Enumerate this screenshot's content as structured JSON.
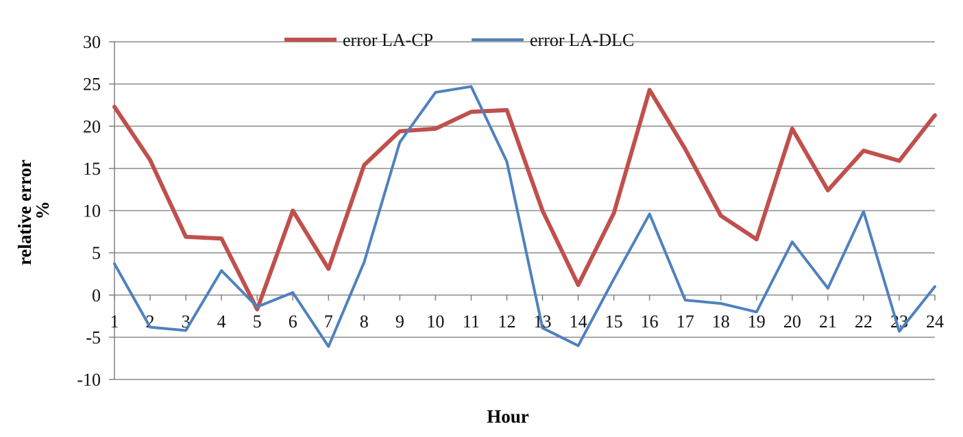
{
  "chart_data": {
    "type": "line",
    "xlabel": "Hour",
    "ylabel_lines": [
      "relative error",
      "%"
    ],
    "ylim": [
      -10,
      30
    ],
    "yticks": [
      -10,
      -5,
      0,
      5,
      10,
      15,
      20,
      25,
      30
    ],
    "grid": "horizontal",
    "legend_position": "top-center",
    "categories": [
      "1",
      "2",
      "3",
      "4",
      "5",
      "6",
      "7",
      "8",
      "9",
      "10",
      "11",
      "12",
      "13",
      "14",
      "15",
      "16",
      "17",
      "18",
      "19",
      "20",
      "21",
      "22",
      "23",
      "24"
    ],
    "series": [
      {
        "name": "error LA-CP",
        "color": "#c0504d",
        "values": [
          22.3,
          16.0,
          6.9,
          6.7,
          -1.7,
          10.0,
          3.1,
          15.4,
          19.4,
          19.7,
          21.7,
          21.9,
          10.0,
          1.2,
          9.7,
          24.3,
          17.3,
          9.4,
          6.6,
          19.7,
          12.4,
          17.1,
          15.9,
          21.3
        ]
      },
      {
        "name": "error LA-DLC",
        "color": "#4f81bd",
        "values": [
          3.7,
          -3.8,
          -4.2,
          2.9,
          -1.4,
          0.3,
          -6.1,
          3.9,
          18.1,
          24.0,
          24.7,
          15.8,
          -3.9,
          -6.0,
          1.9,
          9.6,
          -0.6,
          -1.0,
          -2.0,
          6.3,
          0.8,
          9.9,
          -4.3,
          1.0
        ]
      }
    ]
  }
}
